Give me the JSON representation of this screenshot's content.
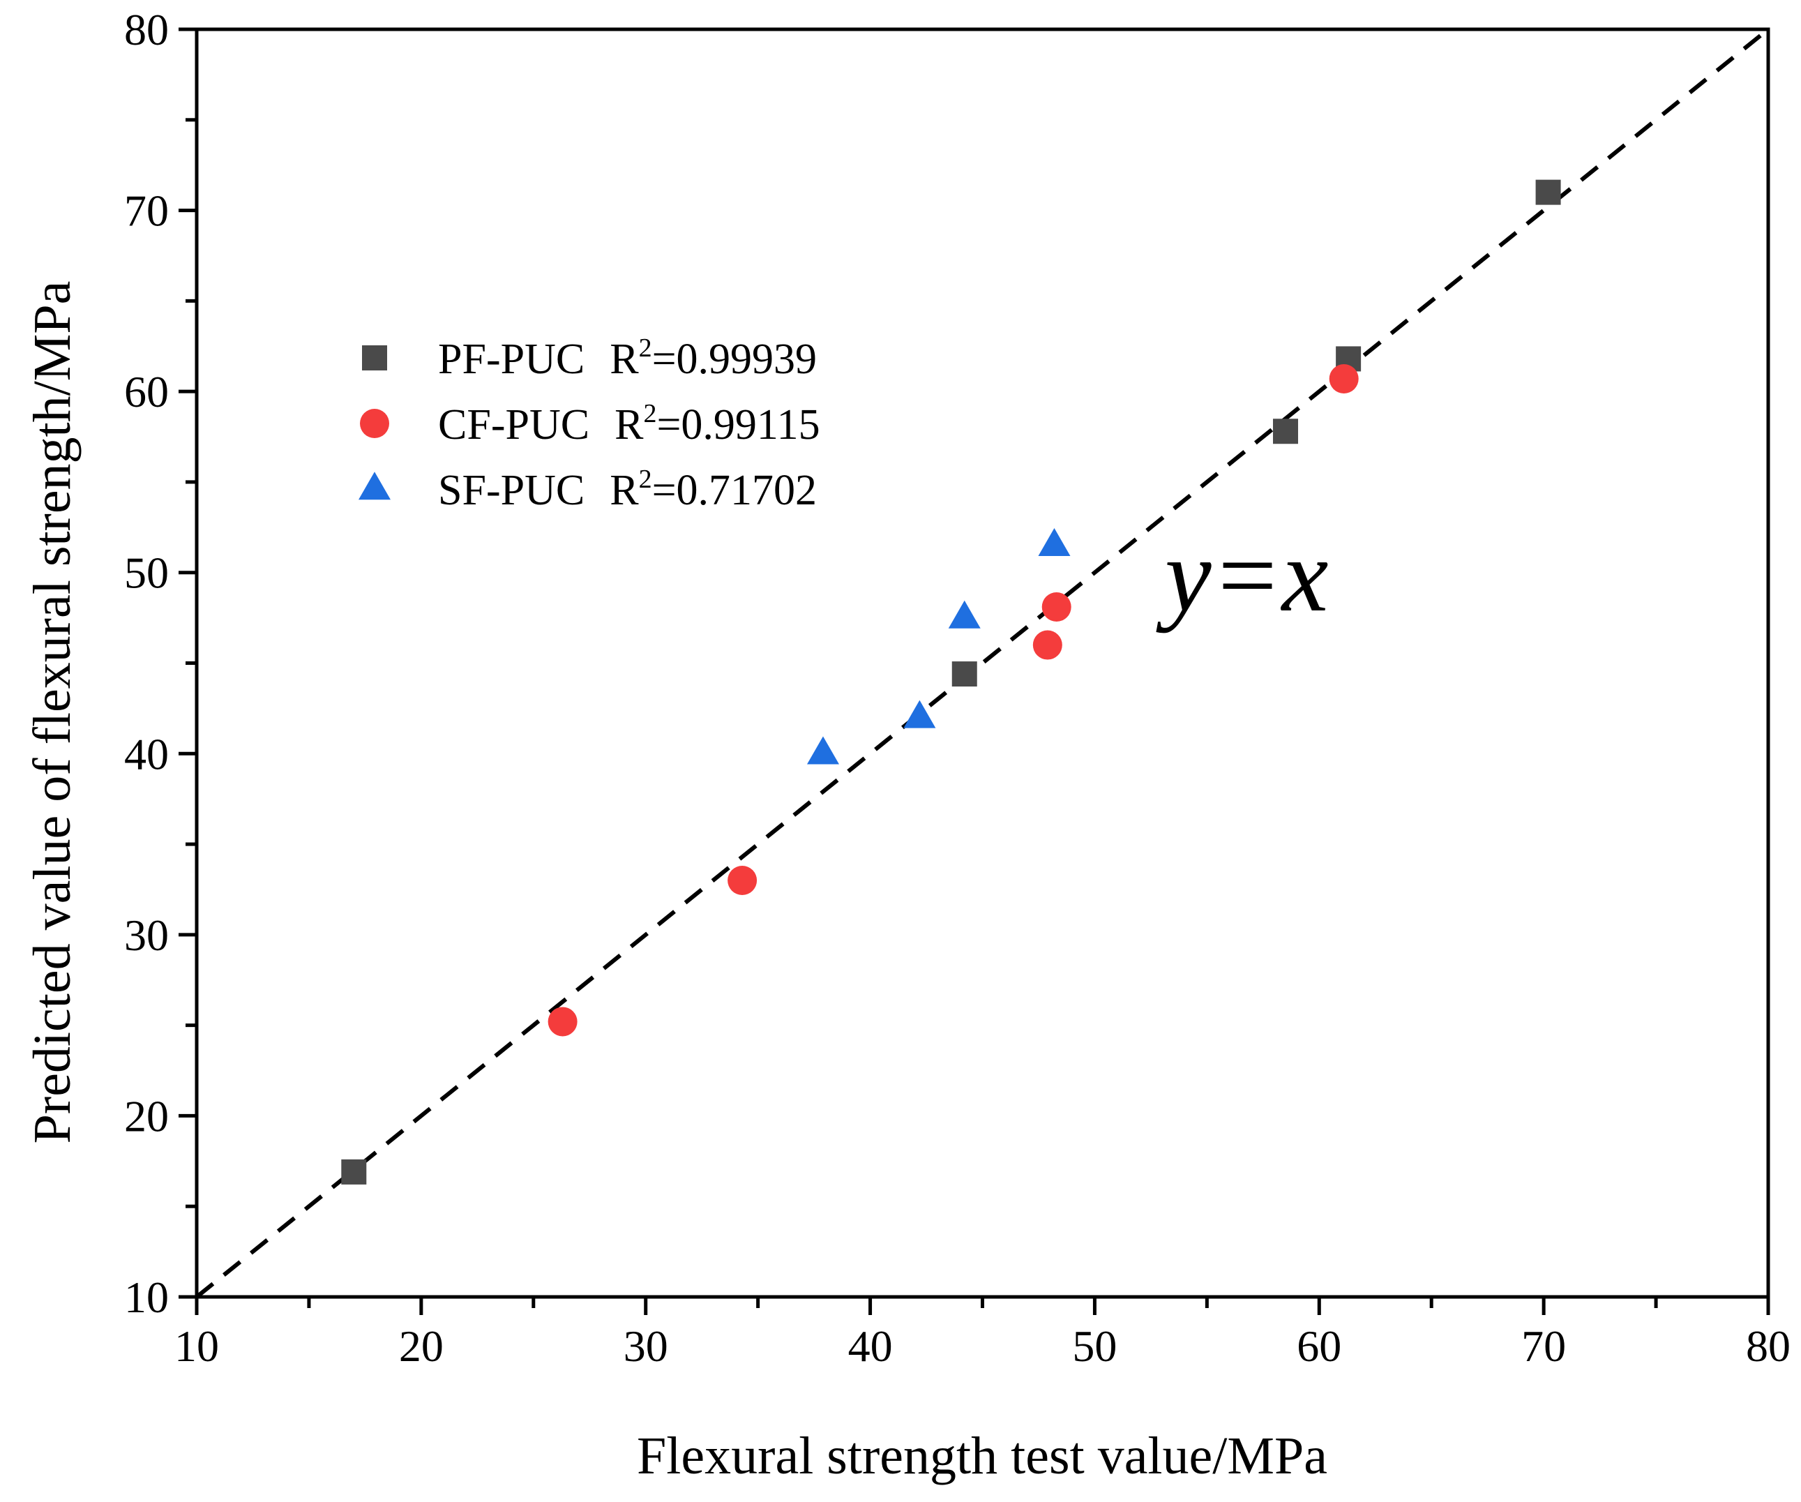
{
  "chart_data": {
    "type": "scatter",
    "title": "",
    "xlabel": "Flexural strength test value/MPa",
    "ylabel": "Predicted value of flexural strength/MPa",
    "xlim": [
      10,
      80
    ],
    "ylim": [
      10,
      80
    ],
    "xticks": [
      "10",
      "20",
      "30",
      "40",
      "50",
      "60",
      "70",
      "80"
    ],
    "yticks": [
      "10",
      "20",
      "30",
      "40",
      "50",
      "60",
      "70",
      "80"
    ],
    "grid": false,
    "legend_position": "upper-left",
    "reference_line": {
      "label": "y=x",
      "style": "dashed",
      "color": "#000000"
    },
    "series": [
      {
        "name": "PF-PUC",
        "r2_label": "R",
        "r2_value": "=0.99939",
        "marker": "square",
        "color": "#4a4a4a",
        "points": [
          {
            "x": 17.0,
            "y": 16.9
          },
          {
            "x": 44.2,
            "y": 44.4
          },
          {
            "x": 58.5,
            "y": 57.8
          },
          {
            "x": 61.3,
            "y": 61.8
          },
          {
            "x": 70.2,
            "y": 71.0
          }
        ]
      },
      {
        "name": "CF-PUC",
        "r2_label": "R",
        "r2_value": "=0.99115",
        "marker": "circle",
        "color": "#f43c3c",
        "points": [
          {
            "x": 26.3,
            "y": 25.2
          },
          {
            "x": 34.3,
            "y": 33.0
          },
          {
            "x": 47.9,
            "y": 46.0
          },
          {
            "x": 48.3,
            "y": 48.1
          },
          {
            "x": 61.1,
            "y": 60.7
          }
        ]
      },
      {
        "name": "SF-PUC",
        "r2_label": "R",
        "r2_value": "=0.71702",
        "marker": "triangle",
        "color": "#1f6fe0",
        "points": [
          {
            "x": 37.9,
            "y": 40.0
          },
          {
            "x": 42.2,
            "y": 42.0
          },
          {
            "x": 44.2,
            "y": 47.5
          },
          {
            "x": 48.2,
            "y": 51.5
          }
        ]
      }
    ]
  }
}
